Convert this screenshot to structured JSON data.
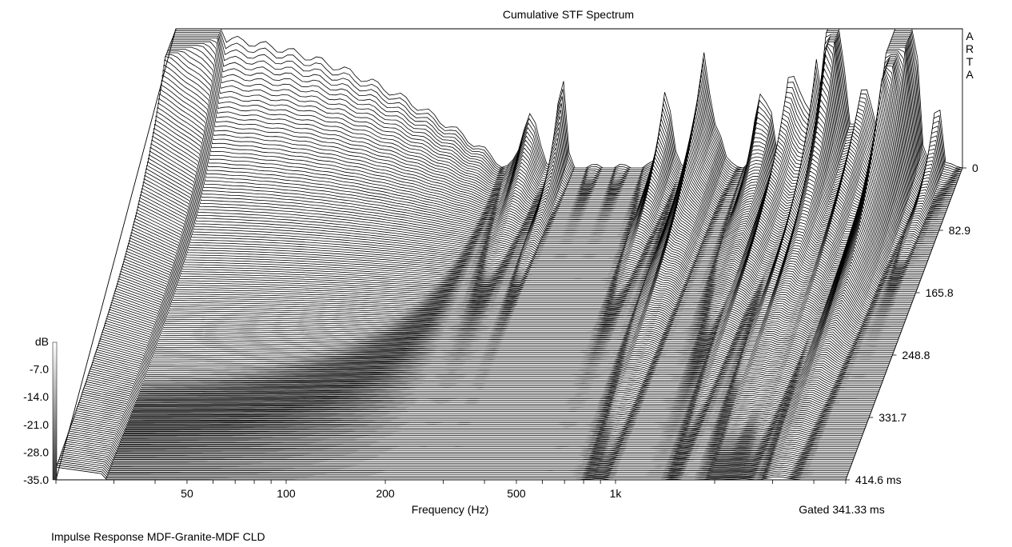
{
  "chart_data": {
    "type": "waterfall",
    "title": "Cumulative STF Spectrum",
    "brand": "ARTA",
    "xlabel": "Frequency (Hz)",
    "xscale": "log",
    "xlim": [
      20,
      5000
    ],
    "xticks": [
      {
        "value": 50,
        "label": "50"
      },
      {
        "value": 100,
        "label": "100"
      },
      {
        "value": 200,
        "label": "200"
      },
      {
        "value": 500,
        "label": "500"
      },
      {
        "value": 1000,
        "label": "1k"
      }
    ],
    "zlabel": "dB",
    "zlim": [
      -35.0,
      0
    ],
    "zticks": [
      "dB",
      "-7.0",
      "-14.0",
      "-21.0",
      "-28.0",
      "-35.0"
    ],
    "time_axis_ticks": [
      "0",
      "82.9",
      "165.8",
      "248.8",
      "331.7",
      "414.6 ms"
    ],
    "time_range_ms": [
      0,
      414.6
    ],
    "gate_label": "Gated 341.33 ms",
    "slice_count": 170,
    "grid": false,
    "legend": "none"
  },
  "footer": {
    "caption": "Impulse Response MDF-Granite-MDF CLD"
  }
}
